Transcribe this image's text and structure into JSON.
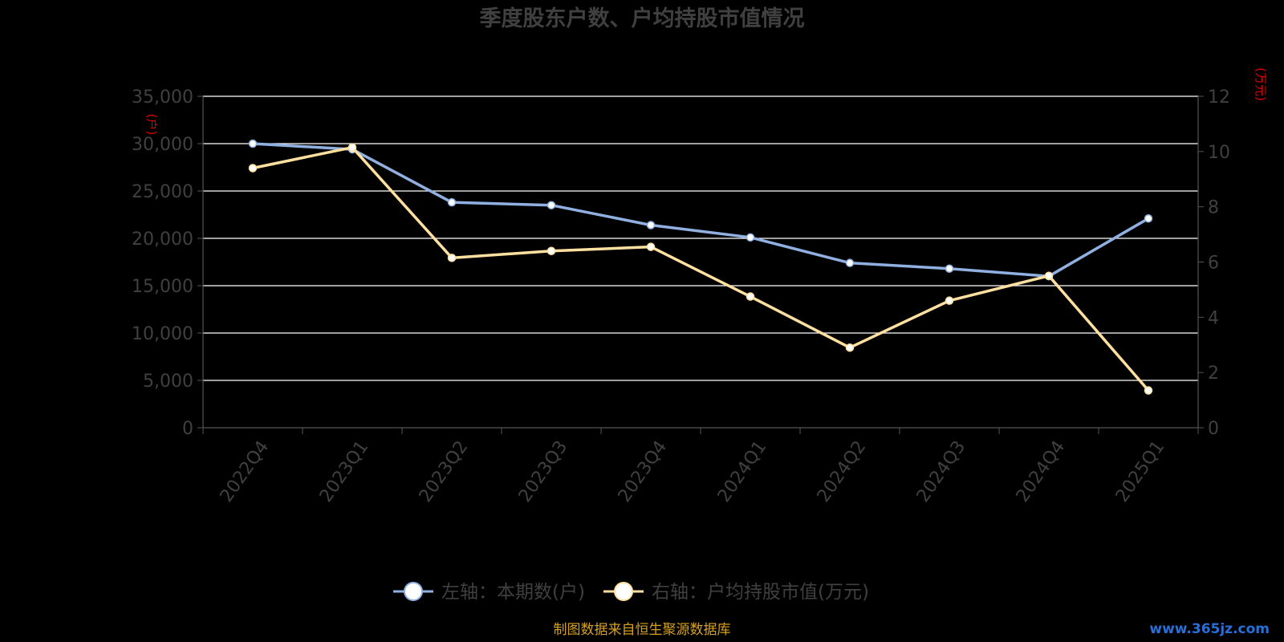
{
  "chart_data": {
    "type": "line",
    "title": "季度股东户数、户均持股市值情况",
    "categories": [
      "2022Q4",
      "2023Q1",
      "2023Q2",
      "2023Q3",
      "2023Q4",
      "2024Q1",
      "2024Q2",
      "2024Q3",
      "2024Q4",
      "2025Q1"
    ],
    "left_axis": {
      "unit": "(户)",
      "range": [
        0,
        35000
      ],
      "ticks": [
        "0",
        "5,000",
        "10,000",
        "15,000",
        "20,000",
        "25,000",
        "30,000",
        "35,000"
      ]
    },
    "right_axis": {
      "unit": "(万元)",
      "range": [
        0,
        12
      ],
      "ticks": [
        "0",
        "2",
        "4",
        "6",
        "8",
        "10",
        "12"
      ]
    },
    "series": [
      {
        "name": "左轴：本期数(户)",
        "axis": "left",
        "color": "#8fb0e0",
        "values": [
          30000,
          29400,
          23800,
          23500,
          21400,
          20100,
          17400,
          16800,
          16000,
          22100
        ]
      },
      {
        "name": "右轴：户均持股市值(万元)",
        "axis": "right",
        "color": "#ffe0a0",
        "values": [
          9.4,
          10.15,
          6.15,
          6.4,
          6.55,
          4.75,
          2.9,
          4.6,
          5.5,
          1.35
        ]
      }
    ],
    "grid": true,
    "legend": "bottom-center"
  },
  "footer": {
    "source": "制图数据来自恒生聚源数据库",
    "watermark": "www.365jz.com"
  },
  "colors": {
    "title": "#404040",
    "axis_text": "#404040",
    "unit_text": "#dd0000",
    "grid": "#ffffff",
    "source": "#d4a020"
  }
}
